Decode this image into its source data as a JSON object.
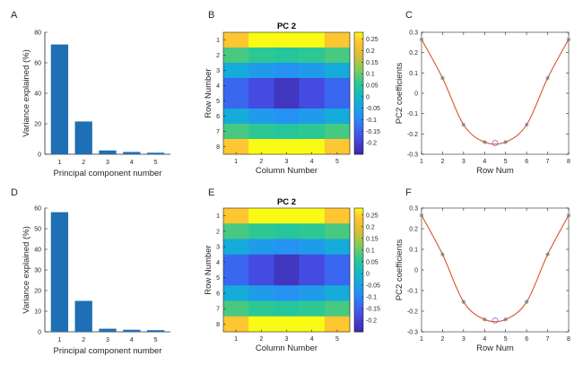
{
  "figure": {
    "rows": [
      {
        "bar": {
          "label": "A",
          "chart_data": {
            "type": "bar",
            "categories": [
              "1",
              "2",
              "3",
              "4",
              "5"
            ],
            "values": [
              72,
              21.5,
              2.5,
              1.5,
              1
            ],
            "xlabel": "Principal component number",
            "ylabel": "Variance explained (%)",
            "ylim": [
              0,
              80
            ],
            "yticks": [
              0,
              20,
              40,
              60,
              80
            ],
            "color": "#1f6fb4"
          }
        },
        "heatmap": {
          "label": "B",
          "title": "PC 2",
          "chart_data": {
            "type": "heatmap",
            "title": "PC 2",
            "xlabel": "Column Number",
            "ylabel": "Row Number",
            "xticks": [
              "1",
              "2",
              "3",
              "4",
              "5"
            ],
            "yticks": [
              "1",
              "2",
              "3",
              "4",
              "5",
              "6",
              "7",
              "8"
            ],
            "colorbar": {
              "range": [
                -0.25,
                0.28
              ],
              "ticks": [
                "0.25",
                "0.2",
                "0.15",
                "0.1",
                "0.05",
                "0",
                "-0.05",
                "-0.1",
                "-0.15",
                "-0.2"
              ]
            },
            "values": [
              [
                0.24,
                0.28,
                0.28,
                0.28,
                0.24
              ],
              [
                0.08,
                0.06,
                0.05,
                0.06,
                0.08
              ],
              [
                -0.03,
                -0.06,
                -0.08,
                -0.06,
                -0.03
              ],
              [
                -0.14,
                -0.18,
                -0.22,
                -0.18,
                -0.14
              ],
              [
                -0.14,
                -0.18,
                -0.22,
                -0.18,
                -0.14
              ],
              [
                -0.03,
                -0.06,
                -0.08,
                -0.06,
                -0.03
              ],
              [
                0.08,
                0.06,
                0.05,
                0.06,
                0.08
              ],
              [
                0.24,
                0.28,
                0.28,
                0.28,
                0.24
              ]
            ]
          }
        },
        "line": {
          "label": "C",
          "chart_data": {
            "type": "line",
            "xlabel": "Row Num",
            "ylabel": "PC2 coefficients",
            "xlim": [
              1,
              8
            ],
            "ylim": [
              -0.3,
              0.3
            ],
            "xticks": [
              1,
              2,
              3,
              4,
              5,
              6,
              7,
              8
            ],
            "yticks": [
              -0.3,
              -0.2,
              -0.1,
              0,
              0.1,
              0.2,
              0.3
            ],
            "x": [
              1,
              2,
              3,
              4,
              5,
              6,
              7,
              8
            ],
            "y": [
              0.265,
              0.075,
              -0.155,
              -0.24,
              -0.24,
              -0.155,
              0.075,
              0.265
            ],
            "minimum": {
              "x": 4.5,
              "y": -0.245
            },
            "color": "#d9532b"
          }
        }
      },
      {
        "bar": {
          "label": "D",
          "chart_data": {
            "type": "bar",
            "categories": [
              "1",
              "2",
              "3",
              "4",
              "5"
            ],
            "values": [
              58,
              15,
              1.5,
              1,
              0.8
            ],
            "xlabel": "Principal component number",
            "ylabel": "Variance explained (%)",
            "ylim": [
              0,
              60
            ],
            "yticks": [
              0,
              10,
              20,
              30,
              40,
              50,
              60
            ],
            "color": "#1f6fb4"
          }
        },
        "heatmap": {
          "label": "E",
          "title": "PC 2",
          "chart_data": {
            "type": "heatmap",
            "title": "PC 2",
            "xlabel": "Column Number",
            "ylabel": "Row Number",
            "xticks": [
              "1",
              "2",
              "3",
              "4",
              "5"
            ],
            "yticks": [
              "1",
              "2",
              "3",
              "4",
              "5",
              "6",
              "7",
              "8"
            ],
            "colorbar": {
              "range": [
                -0.25,
                0.28
              ],
              "ticks": [
                "0.25",
                "0.2",
                "0.15",
                "0.1",
                "0.05",
                "0",
                "-0.05",
                "-0.1",
                "-0.15",
                "-0.2"
              ]
            },
            "values": [
              [
                0.24,
                0.28,
                0.28,
                0.28,
                0.24
              ],
              [
                0.08,
                0.06,
                0.05,
                0.06,
                0.08
              ],
              [
                -0.03,
                -0.06,
                -0.08,
                -0.06,
                -0.03
              ],
              [
                -0.14,
                -0.18,
                -0.22,
                -0.18,
                -0.14
              ],
              [
                -0.14,
                -0.18,
                -0.22,
                -0.18,
                -0.14
              ],
              [
                -0.03,
                -0.06,
                -0.08,
                -0.06,
                -0.03
              ],
              [
                0.08,
                0.06,
                0.05,
                0.06,
                0.08
              ],
              [
                0.24,
                0.28,
                0.28,
                0.28,
                0.24
              ]
            ]
          }
        },
        "line": {
          "label": "F",
          "chart_data": {
            "type": "line",
            "xlabel": "Row Num",
            "ylabel": "PC2 coefficients",
            "xlim": [
              1,
              8
            ],
            "ylim": [
              -0.3,
              0.3
            ],
            "xticks": [
              1,
              2,
              3,
              4,
              5,
              6,
              7,
              8
            ],
            "yticks": [
              -0.3,
              -0.2,
              -0.1,
              0,
              0.1,
              0.2,
              0.3
            ],
            "x": [
              1,
              2,
              3,
              4,
              5,
              6,
              7,
              8
            ],
            "y": [
              0.265,
              0.075,
              -0.155,
              -0.24,
              -0.24,
              -0.155,
              0.075,
              0.265
            ],
            "minimum": {
              "x": 4.5,
              "y": -0.245
            },
            "color": "#d9532b"
          }
        }
      }
    ]
  }
}
